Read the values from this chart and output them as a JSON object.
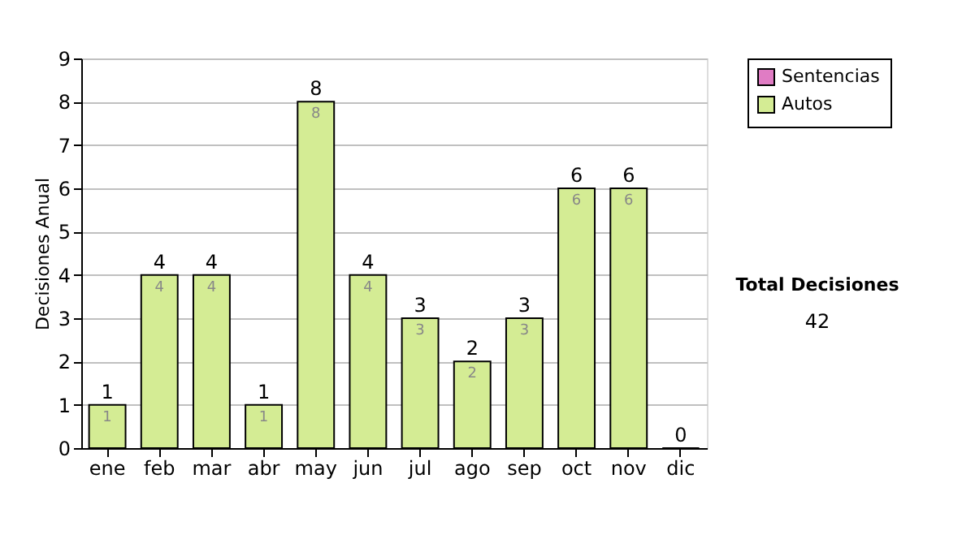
{
  "chart_data": {
    "type": "bar",
    "stacked": true,
    "ylabel": "Decisiones Anual",
    "categories": [
      "ene",
      "feb",
      "mar",
      "abr",
      "may",
      "jun",
      "jul",
      "ago",
      "sep",
      "oct",
      "nov",
      "dic"
    ],
    "series": [
      {
        "name": "Sentencias",
        "color": "#e07cc4",
        "values": [
          0,
          0,
          0,
          0,
          0,
          0,
          0,
          0,
          0,
          0,
          0,
          0
        ]
      },
      {
        "name": "Autos",
        "color": "#d4ec94",
        "values": [
          1,
          4,
          4,
          1,
          8,
          4,
          3,
          2,
          3,
          6,
          6,
          0
        ],
        "value_labels": [
          "1",
          "4",
          "4",
          "1",
          "8",
          "4",
          "3",
          "2",
          "3",
          "6",
          "6",
          null
        ]
      }
    ],
    "totals": [
      "1",
      "4",
      "4",
      "1",
      "8",
      "4",
      "3",
      "2",
      "3",
      "6",
      "6",
      "0"
    ],
    "ylim": [
      0,
      9
    ],
    "yticks": [
      0,
      1,
      2,
      3,
      4,
      5,
      6,
      7,
      8,
      9
    ],
    "grid": "y",
    "legend": "right",
    "annotations": [
      "Total Decisiones",
      "42"
    ]
  }
}
